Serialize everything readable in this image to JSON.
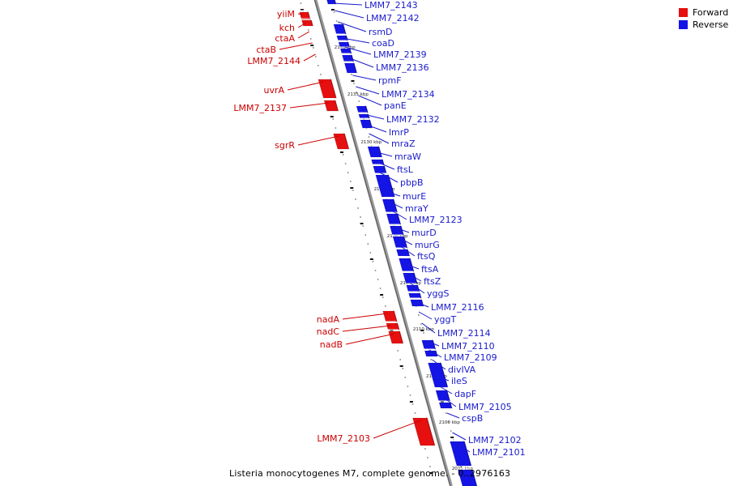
{
  "legend": {
    "forward_label": "Forward",
    "reverse_label": "Reverse",
    "forward_color": "#e61010",
    "reverse_color": "#1414e6"
  },
  "caption": "Listeria monocytogenes M7, complete genome. - 0..2976163",
  "colors": {
    "forward_text": "#cc0000",
    "reverse_text": "#1a1acc",
    "track": "#909090"
  },
  "forward_genes": [
    "yiiM",
    "kch",
    "ctaA",
    "ctaB",
    "LMM7_2144",
    "uvrA",
    "LMM7_2137",
    "sgrR",
    "nadA",
    "nadC",
    "nadB",
    "LMM7_2103"
  ],
  "reverse_genes": [
    "LMM7_2143",
    "LMM7_2142",
    "rsmD",
    "coaD",
    "LMM7_2139",
    "LMM7_2136",
    "rpmF",
    "LMM7_2134",
    "panE",
    "LMM7_2132",
    "lmrP",
    "mraZ",
    "mraW",
    "ftsL",
    "pbpB",
    "murE",
    "mraY",
    "LMM7_2123",
    "murD",
    "murG",
    "ftsQ",
    "ftsA",
    "ftsZ",
    "yggS",
    "LMM7_2116",
    "yggT",
    "LMM7_2114",
    "LMM7_2110",
    "LMM7_2109",
    "divIVA",
    "ileS",
    "dapF",
    "LMM7_2105",
    "cspB",
    "LMM7_2102",
    "LMM7_2101"
  ],
  "scale_ticks": [
    "2140 kbp",
    "2135 kbp",
    "2130 kbp",
    "2125 kbp",
    "2120 kbp",
    "2115 kbp",
    "2110 kbp",
    "2105 kbp",
    "2100 kbp",
    "2095 kbp"
  ]
}
